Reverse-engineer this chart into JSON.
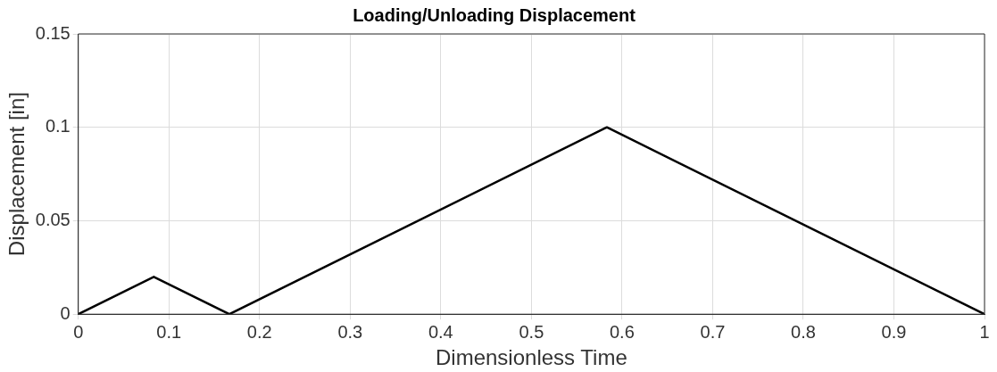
{
  "chart_data": {
    "type": "line",
    "title": "Loading/Unloading Displacement",
    "xlabel": "Dimensionless Time",
    "ylabel": "Displacement [in]",
    "x": [
      0,
      0.0833,
      0.1667,
      0.5833,
      1
    ],
    "series": [
      {
        "color": "#000000",
        "values": [
          0,
          0.02,
          0,
          0.1,
          0
        ]
      }
    ],
    "xlim": [
      0,
      1
    ],
    "xticks": [
      0,
      0.1,
      0.2,
      0.3,
      0.4,
      0.5,
      0.6,
      0.7,
      0.8,
      0.9,
      1
    ],
    "ylim": [
      0,
      0.15
    ],
    "yticks": [
      0,
      0.05,
      0.1,
      0.15
    ],
    "grid": true,
    "legend": false,
    "marker": "none",
    "line_style": "solid"
  }
}
